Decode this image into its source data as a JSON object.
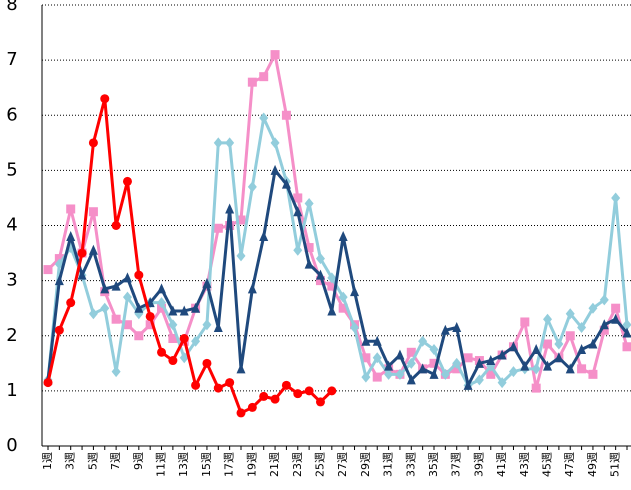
{
  "chart_data": {
    "type": "line",
    "categories": [
      "1週",
      null,
      "3週",
      null,
      "5週",
      null,
      "7週",
      null,
      "9週",
      null,
      "11週",
      null,
      "13週",
      null,
      "15週",
      null,
      "17週",
      null,
      "19週",
      null,
      "21週",
      null,
      "23週",
      null,
      "25週",
      null,
      "27週",
      null,
      "29週",
      null,
      "31週",
      null,
      "33週",
      null,
      "35週",
      null,
      "37週",
      null,
      "39週",
      null,
      "41週",
      null,
      "43週",
      null,
      "45週",
      null,
      "47週",
      null,
      "49週",
      null,
      "51週",
      null
    ],
    "ylim": [
      0,
      8
    ],
    "yticks": [
      0,
      1,
      2,
      3,
      4,
      5,
      6,
      7,
      8
    ],
    "grid": true,
    "series": [
      {
        "color": "#f58fc8",
        "marker": "square",
        "values": [
          3.2,
          3.4,
          4.3,
          3.5,
          4.25,
          2.8,
          2.3,
          2.2,
          2.0,
          2.2,
          2.5,
          1.95,
          1.9,
          2.5,
          2.9,
          3.95,
          4.0,
          4.1,
          6.6,
          6.7,
          7.1,
          6.0,
          4.5,
          3.6,
          3.0,
          2.9,
          2.5,
          2.2,
          1.6,
          1.25,
          1.4,
          1.3,
          1.7,
          1.4,
          1.5,
          1.3,
          1.4,
          1.6,
          1.55,
          1.3,
          1.65,
          1.8,
          2.25,
          1.05,
          1.85,
          1.6,
          2.0,
          1.4,
          1.3,
          2.1,
          2.5,
          1.8
        ]
      },
      {
        "color": "#92cddc",
        "marker": "diamond",
        "values": [
          1.2,
          3.3,
          3.6,
          3.1,
          2.4,
          2.5,
          1.35,
          2.7,
          2.4,
          2.6,
          2.6,
          2.2,
          1.6,
          1.9,
          2.2,
          5.5,
          5.5,
          3.45,
          4.7,
          5.95,
          5.5,
          4.8,
          3.55,
          4.4,
          3.4,
          3.05,
          2.7,
          2.15,
          1.25,
          1.6,
          1.3,
          1.3,
          1.5,
          1.9,
          1.75,
          1.3,
          1.5,
          1.1,
          1.2,
          1.45,
          1.15,
          1.35,
          1.4,
          1.4,
          2.3,
          1.85,
          2.4,
          2.15,
          2.5,
          2.65,
          4.5,
          2.2
        ]
      },
      {
        "color": "#1f497d",
        "marker": "triangle",
        "values": [
          1.2,
          3.0,
          3.8,
          3.1,
          3.55,
          2.85,
          2.9,
          3.05,
          2.5,
          2.6,
          2.85,
          2.45,
          2.45,
          2.5,
          2.95,
          2.15,
          4.3,
          1.4,
          2.85,
          3.8,
          5.0,
          4.75,
          4.25,
          3.3,
          3.1,
          2.45,
          3.8,
          2.8,
          1.9,
          1.9,
          1.45,
          1.65,
          1.2,
          1.4,
          1.3,
          2.1,
          2.15,
          1.1,
          1.5,
          1.55,
          1.65,
          1.8,
          1.45,
          1.75,
          1.45,
          1.6,
          1.4,
          1.75,
          1.85,
          2.2,
          2.3,
          2.05
        ]
      },
      {
        "color": "#ff0000",
        "marker": "circle",
        "values": [
          1.15,
          2.1,
          2.6,
          3.5,
          5.5,
          6.3,
          4.0,
          4.8,
          3.1,
          2.35,
          1.7,
          1.55,
          1.95,
          1.1,
          1.5,
          1.05,
          1.15,
          0.6,
          0.7,
          0.9,
          0.85,
          1.1,
          0.95,
          1.0,
          0.8,
          1.0,
          null,
          null,
          null,
          null,
          null,
          null,
          null,
          null,
          null,
          null,
          null,
          null,
          null,
          null,
          null,
          null,
          null,
          null,
          null,
          null,
          null,
          null,
          null,
          null,
          null,
          null
        ]
      }
    ]
  }
}
